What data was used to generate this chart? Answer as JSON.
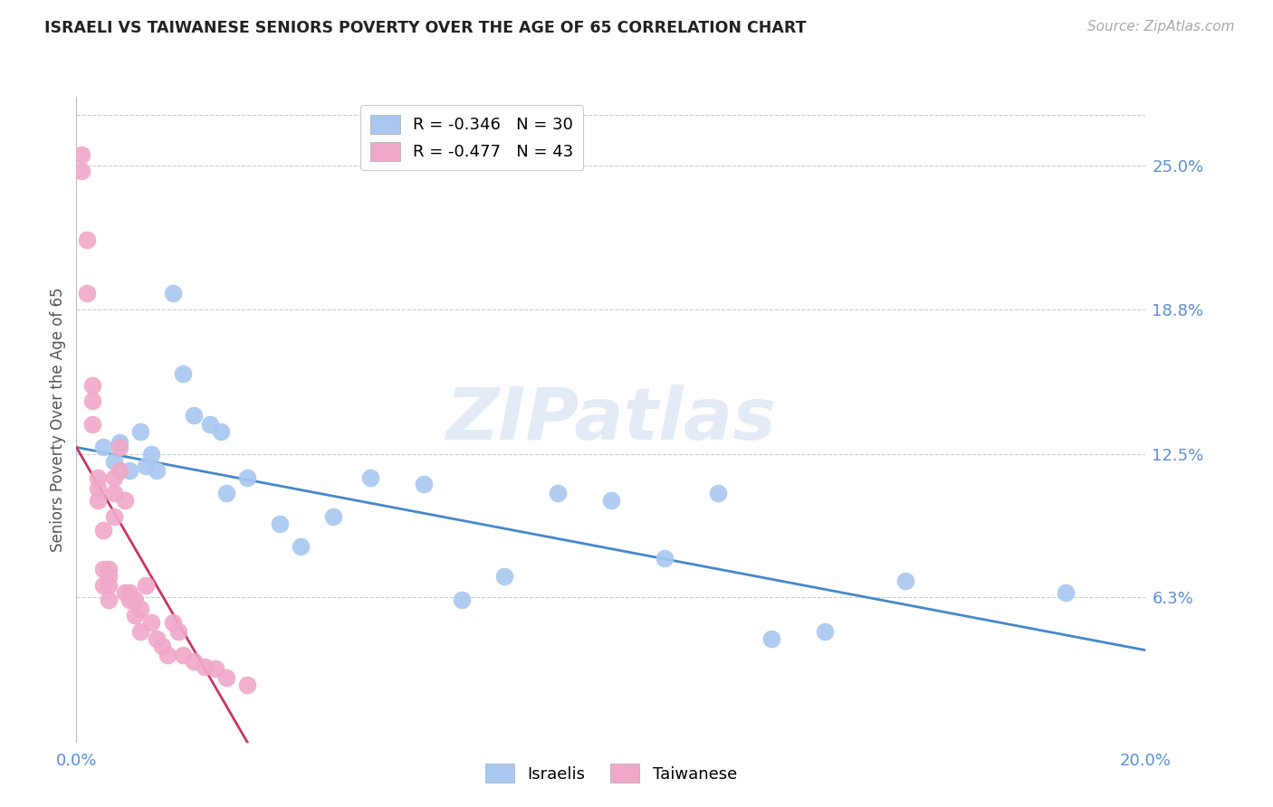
{
  "title": "ISRAELI VS TAIWANESE SENIORS POVERTY OVER THE AGE OF 65 CORRELATION CHART",
  "source": "Source: ZipAtlas.com",
  "ylabel": "Seniors Poverty Over the Age of 65",
  "ytick_values": [
    0.063,
    0.125,
    0.188,
    0.25
  ],
  "ytick_labels": [
    "6.3%",
    "12.5%",
    "18.8%",
    "25.0%"
  ],
  "xmin": 0.0,
  "xmax": 0.2,
  "ymin": 0.0,
  "ymax": 0.28,
  "israeli_color": "#a8c8f0",
  "taiwanese_color": "#f0a8c8",
  "trendline_israeli_color": "#4488cc",
  "trendline_taiwanese_color": "#cc3366",
  "legend_r_israeli": "R = -0.346",
  "legend_n_israeli": "N = 30",
  "legend_r_taiwanese": "R = -0.477",
  "legend_n_taiwanese": "N = 43",
  "watermark_zip": "ZIP",
  "watermark_atlas": "atlas",
  "israeli_x": [
    0.005,
    0.007,
    0.008,
    0.01,
    0.012,
    0.013,
    0.014,
    0.015,
    0.018,
    0.02,
    0.022,
    0.025,
    0.027,
    0.028,
    0.032,
    0.038,
    0.042,
    0.048,
    0.055,
    0.065,
    0.072,
    0.08,
    0.09,
    0.1,
    0.11,
    0.12,
    0.13,
    0.14,
    0.155,
    0.185
  ],
  "israeli_y": [
    0.128,
    0.122,
    0.13,
    0.118,
    0.135,
    0.12,
    0.125,
    0.118,
    0.195,
    0.16,
    0.142,
    0.138,
    0.135,
    0.108,
    0.115,
    0.095,
    0.085,
    0.098,
    0.115,
    0.112,
    0.062,
    0.072,
    0.108,
    0.105,
    0.08,
    0.108,
    0.045,
    0.048,
    0.07,
    0.065
  ],
  "taiwanese_x": [
    0.001,
    0.001,
    0.002,
    0.002,
    0.003,
    0.003,
    0.003,
    0.004,
    0.004,
    0.004,
    0.005,
    0.005,
    0.005,
    0.006,
    0.006,
    0.006,
    0.006,
    0.007,
    0.007,
    0.007,
    0.008,
    0.008,
    0.009,
    0.009,
    0.01,
    0.01,
    0.011,
    0.011,
    0.012,
    0.012,
    0.013,
    0.014,
    0.015,
    0.016,
    0.017,
    0.018,
    0.019,
    0.02,
    0.022,
    0.024,
    0.026,
    0.028,
    0.032
  ],
  "taiwanese_y": [
    0.255,
    0.248,
    0.218,
    0.195,
    0.155,
    0.148,
    0.138,
    0.115,
    0.11,
    0.105,
    0.092,
    0.075,
    0.068,
    0.075,
    0.072,
    0.068,
    0.062,
    0.115,
    0.108,
    0.098,
    0.128,
    0.118,
    0.105,
    0.065,
    0.065,
    0.062,
    0.062,
    0.055,
    0.058,
    0.048,
    0.068,
    0.052,
    0.045,
    0.042,
    0.038,
    0.052,
    0.048,
    0.038,
    0.035,
    0.033,
    0.032,
    0.028,
    0.025
  ],
  "israeli_trendline_x": [
    0.0,
    0.2
  ],
  "israeli_trendline_y": [
    0.128,
    0.04
  ],
  "taiwanese_trendline_x": [
    0.0,
    0.032
  ],
  "taiwanese_trendline_y": [
    0.128,
    0.0
  ]
}
